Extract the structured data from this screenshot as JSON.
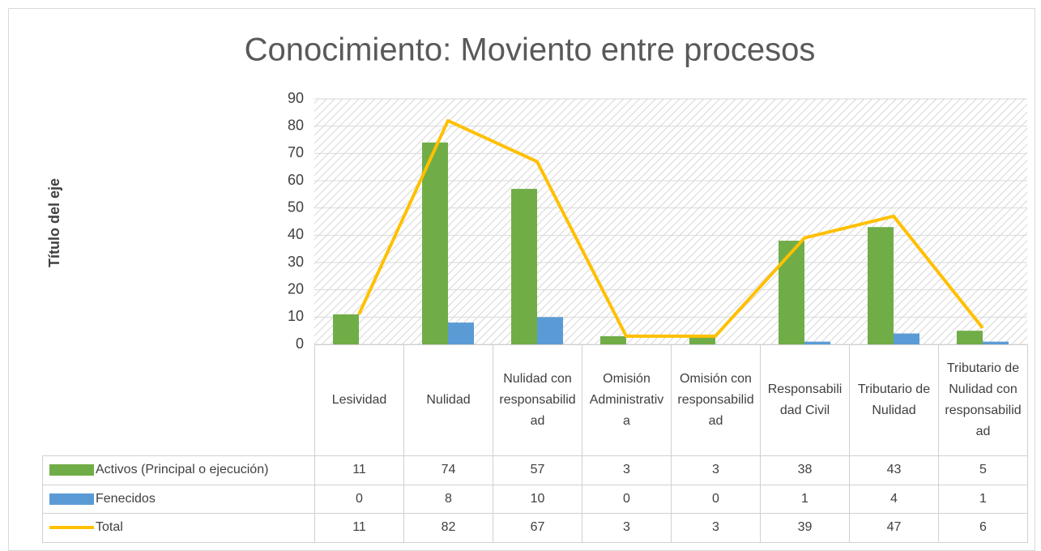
{
  "chart_data": {
    "type": "bar",
    "title": "Conocimiento: Moviento entre procesos",
    "y_axis_label": "Título del eje",
    "categories": [
      "Lesividad",
      "Nulidad",
      "Nulidad con responsabilidad",
      "Omisión Administrativa",
      "Omisión con responsabilidad",
      "Responsabilidad Civil",
      "Tributario de Nulidad",
      "Tributario de Nulidad con responsabilidad"
    ],
    "series": [
      {
        "name": "Activos (Principal o ejecución)",
        "type": "bar",
        "color": "#70ad47",
        "values": [
          11,
          74,
          57,
          3,
          3,
          38,
          43,
          5
        ]
      },
      {
        "name": "Fenecidos",
        "type": "bar",
        "color": "#5b9bd5",
        "values": [
          0,
          8,
          10,
          0,
          0,
          1,
          4,
          1
        ]
      },
      {
        "name": "Total",
        "type": "line",
        "color": "#ffc000",
        "values": [
          11,
          82,
          67,
          3,
          3,
          39,
          47,
          6
        ]
      }
    ],
    "ylim": [
      0,
      90
    ],
    "yticks": [
      0,
      10,
      20,
      30,
      40,
      50,
      60,
      70,
      80,
      90
    ],
    "grid": true
  }
}
